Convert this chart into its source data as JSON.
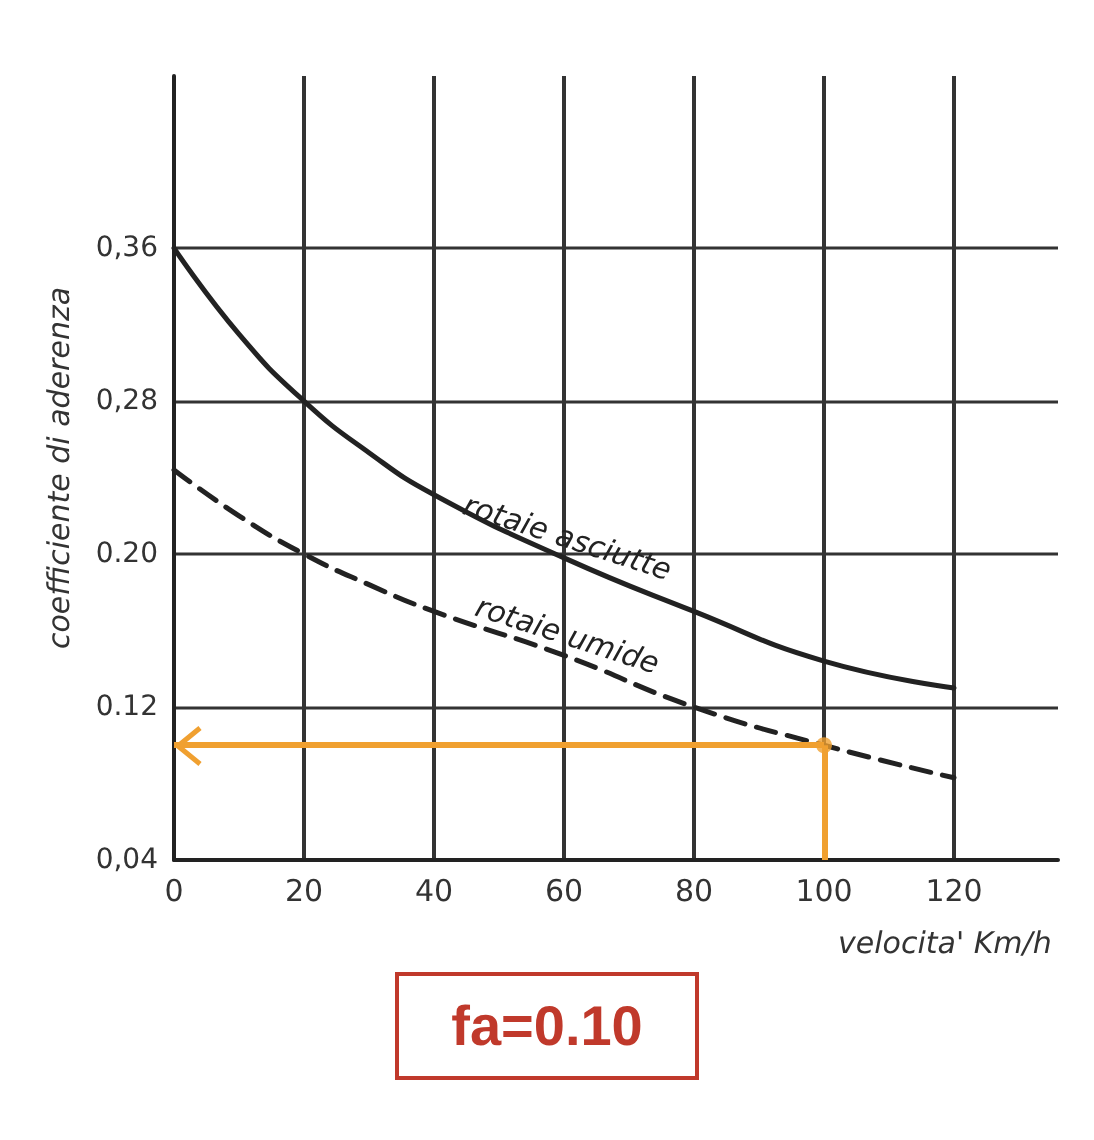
{
  "chart_data": {
    "type": "line",
    "xlabel": "velocita' Km/h",
    "ylabel": "coefficiente di aderenza",
    "x": [
      0,
      10,
      20,
      30,
      40,
      60,
      80,
      100,
      120
    ],
    "series": [
      {
        "name": "rotaie asciutte",
        "color": "#222222",
        "line_style": "solid",
        "values": [
          0.36,
          0.315,
          0.28,
          0.253,
          0.231,
          0.198,
          0.17,
          0.144,
          0.13
        ]
      },
      {
        "name": "rotaie umide",
        "color": "#222222",
        "line_style": "dashed",
        "values": [
          0.244,
          0.22,
          0.2,
          0.184,
          0.17,
          0.147,
          0.12,
          0.1,
          0.083
        ]
      },
      {
        "type": "scatter",
        "marker": "circle",
        "color": "#f0a030",
        "x": [
          100
        ],
        "values": [
          0.1
        ]
      }
    ],
    "xlim": [
      0,
      136
    ],
    "xticks": [
      0,
      20,
      40,
      60,
      80,
      100,
      120
    ],
    "ylim": [
      0.04,
      0.45
    ],
    "yticks": [
      {
        "value": 0.04,
        "label": "0,04"
      },
      {
        "value": 0.12,
        "label": "0.12"
      },
      {
        "value": 0.2,
        "label": "0.20"
      },
      {
        "value": 0.28,
        "label": "0,28"
      },
      {
        "value": 0.36,
        "label": "0,36"
      }
    ],
    "grid": true,
    "marker": "none",
    "ref_lines": [
      {
        "axis": "x",
        "value": 100,
        "label": null,
        "color": "#f0a030"
      },
      {
        "axis": "y",
        "value": 0.1,
        "label": null,
        "color": "#f0a030"
      }
    ],
    "annotations": [
      "fa=0.10"
    ]
  }
}
